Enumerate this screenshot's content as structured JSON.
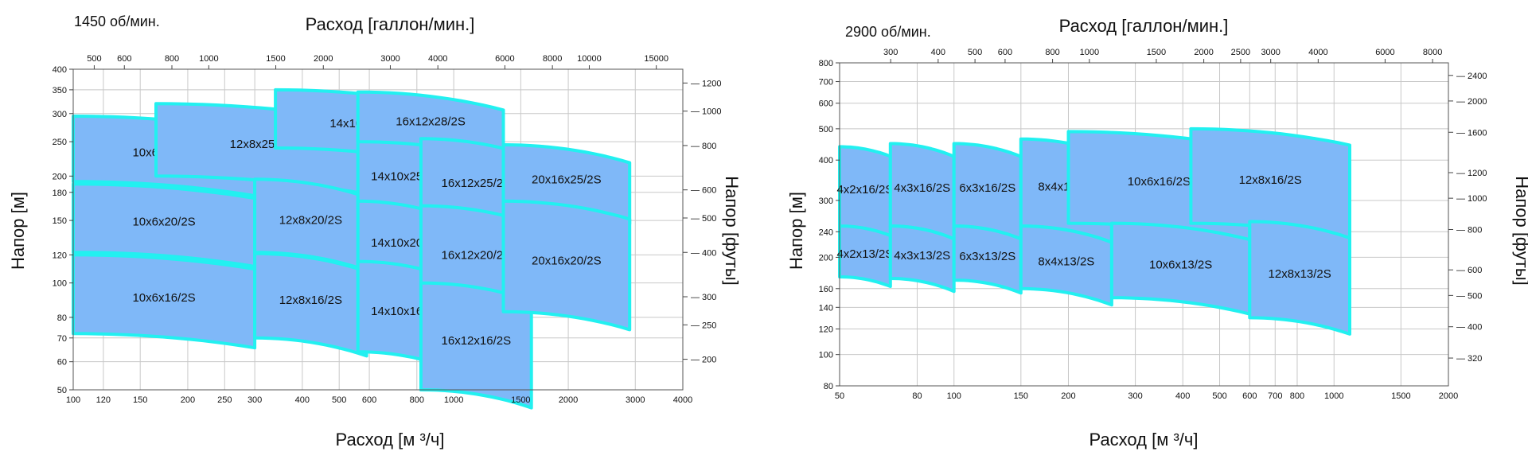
{
  "colors": {
    "region_fill": "#7fb8f8",
    "region_outline": "#22f0f0",
    "grid": "#c8c8c8"
  },
  "chart_data": [
    {
      "type": "area",
      "speed_label": "1450 об/мин.",
      "xlabel": "Расход [м ³/ч]",
      "ylabel": "Напор [м]",
      "x2label": "Расход [галлон/мин.]",
      "y2label": "Напор [футы]",
      "xscale": "log",
      "yscale": "log",
      "xlim": [
        100,
        4000
      ],
      "ylim": [
        50,
        400
      ],
      "x_ticks": [
        100,
        120,
        150,
        200,
        250,
        300,
        400,
        500,
        600,
        800,
        1000,
        1500,
        2000,
        3000,
        4000
      ],
      "y_ticks": [
        50,
        60,
        70,
        80,
        100,
        120,
        150,
        180,
        200,
        250,
        300,
        350,
        400
      ],
      "x2_ticks": [
        500,
        600,
        800,
        1000,
        1500,
        2000,
        3000,
        4000,
        6000,
        8000,
        10000,
        15000
      ],
      "y2_ticks": [
        200,
        250,
        300,
        400,
        500,
        600,
        800,
        1000,
        1200
      ],
      "grid": true,
      "regions": [
        {
          "label": "10x6x25/2S",
          "x0": 100,
          "x1": 300,
          "y_top": 295,
          "y_bot": 193,
          "sag": 0.04
        },
        {
          "label": "10x6x20/2S",
          "x0": 100,
          "x1": 300,
          "y_top": 190,
          "y_bot": 122,
          "sag": 0.04
        },
        {
          "label": "10x6x16/2S",
          "x0": 100,
          "x1": 300,
          "y_top": 120,
          "y_bot": 72,
          "sag": 0.04
        },
        {
          "label": "12x8x25/2S",
          "x0": 165,
          "x1": 590,
          "y_top": 320,
          "y_bot": 200,
          "sag": 0.05
        },
        {
          "label": "12x8x20/2S",
          "x0": 300,
          "x1": 590,
          "y_top": 196,
          "y_bot": 122,
          "sag": 0.05
        },
        {
          "label": "12x8x16/2S",
          "x0": 300,
          "x1": 590,
          "y_top": 121,
          "y_bot": 70,
          "sag": 0.05
        },
        {
          "label": "14x10x28/2S",
          "x0": 340,
          "x1": 1000,
          "y_top": 350,
          "y_bot": 240,
          "sag": 0.05
        },
        {
          "label": "14x10x25/2S",
          "x0": 560,
          "x1": 1000,
          "y_top": 260,
          "y_bot": 162,
          "sag": 0.05
        },
        {
          "label": "14x10x20/2S",
          "x0": 560,
          "x1": 1000,
          "y_top": 170,
          "y_bot": 105,
          "sag": 0.05
        },
        {
          "label": "14x10x16/2S",
          "x0": 560,
          "x1": 1000,
          "y_top": 115,
          "y_bot": 64,
          "sag": 0.05
        },
        {
          "label": "16x12x28/2S",
          "x0": 560,
          "x1": 1350,
          "y_top": 345,
          "y_bot": 250,
          "sag": 0.05
        },
        {
          "label": "16x12x25/2S",
          "x0": 820,
          "x1": 1600,
          "y_top": 255,
          "y_bot": 152,
          "sag": 0.05
        },
        {
          "label": "16x12x20/2S",
          "x0": 820,
          "x1": 1600,
          "y_top": 165,
          "y_bot": 92,
          "sag": 0.05
        },
        {
          "label": "16x12x16/2S",
          "x0": 820,
          "x1": 1600,
          "y_top": 100,
          "y_bot": 50,
          "sag": 0.05
        },
        {
          "label": "20x16x25/2S",
          "x0": 1350,
          "x1": 2900,
          "y_top": 245,
          "y_bot": 165,
          "sag": 0.05
        },
        {
          "label": "20x16x20/2S",
          "x0": 1350,
          "x1": 2900,
          "y_top": 170,
          "y_bot": 83,
          "sag": 0.05
        }
      ]
    },
    {
      "type": "area",
      "speed_label": "2900 об/мин.",
      "xlabel": "Расход [м ³/ч]",
      "ylabel": "Напор [м]",
      "x2label": "Расход [галлон/мин.]",
      "y2label": "Напор [футы]",
      "xscale": "log",
      "yscale": "log",
      "xlim": [
        50,
        2000
      ],
      "ylim": [
        80,
        800
      ],
      "x_ticks": [
        50,
        80,
        100,
        150,
        200,
        300,
        400,
        500,
        600,
        700,
        800,
        1000,
        1500,
        2000
      ],
      "y_ticks": [
        80,
        100,
        120,
        140,
        160,
        200,
        240,
        300,
        400,
        500,
        600,
        700,
        800
      ],
      "x2_ticks": [
        300,
        400,
        500,
        600,
        800,
        1000,
        1500,
        2000,
        2500,
        3000,
        4000,
        6000,
        8000
      ],
      "y2_ticks": [
        320,
        400,
        500,
        600,
        800,
        1000,
        1200,
        1600,
        2000,
        2400
      ],
      "grid": true,
      "regions": [
        {
          "label": "4x2x16/2S",
          "x0": 50,
          "x1": 68,
          "y_top": 440,
          "y_bot": 248,
          "sag": 0.03
        },
        {
          "label": "4x2x13/2S",
          "x0": 50,
          "x1": 68,
          "y_top": 250,
          "y_bot": 174,
          "sag": 0.03
        },
        {
          "label": "4x3x16/2S",
          "x0": 68,
          "x1": 100,
          "y_top": 450,
          "y_bot": 250,
          "sag": 0.04
        },
        {
          "label": "4x3x13/2S",
          "x0": 68,
          "x1": 100,
          "y_top": 250,
          "y_bot": 172,
          "sag": 0.04
        },
        {
          "label": "6x3x16/2S",
          "x0": 100,
          "x1": 150,
          "y_top": 450,
          "y_bot": 250,
          "sag": 0.04
        },
        {
          "label": "6x3x13/2S",
          "x0": 100,
          "x1": 150,
          "y_top": 250,
          "y_bot": 170,
          "sag": 0.04
        },
        {
          "label": "8x4x16/2S",
          "x0": 150,
          "x1": 260,
          "y_top": 465,
          "y_bot": 250,
          "sag": 0.05
        },
        {
          "label": "8x4x13/2S",
          "x0": 150,
          "x1": 260,
          "y_top": 250,
          "y_bot": 160,
          "sag": 0.05
        },
        {
          "label": "10x6x16/2S",
          "x0": 200,
          "x1": 600,
          "y_top": 490,
          "y_bot": 255,
          "sag": 0.05
        },
        {
          "label": "10x6x13/2S",
          "x0": 260,
          "x1": 600,
          "y_top": 255,
          "y_bot": 150,
          "sag": 0.05
        },
        {
          "label": "12x8x16/2S",
          "x0": 420,
          "x1": 1100,
          "y_top": 500,
          "y_bot": 255,
          "sag": 0.05
        },
        {
          "label": "12x8x13/2S",
          "x0": 600,
          "x1": 1100,
          "y_top": 258,
          "y_bot": 130,
          "sag": 0.05
        }
      ]
    }
  ]
}
